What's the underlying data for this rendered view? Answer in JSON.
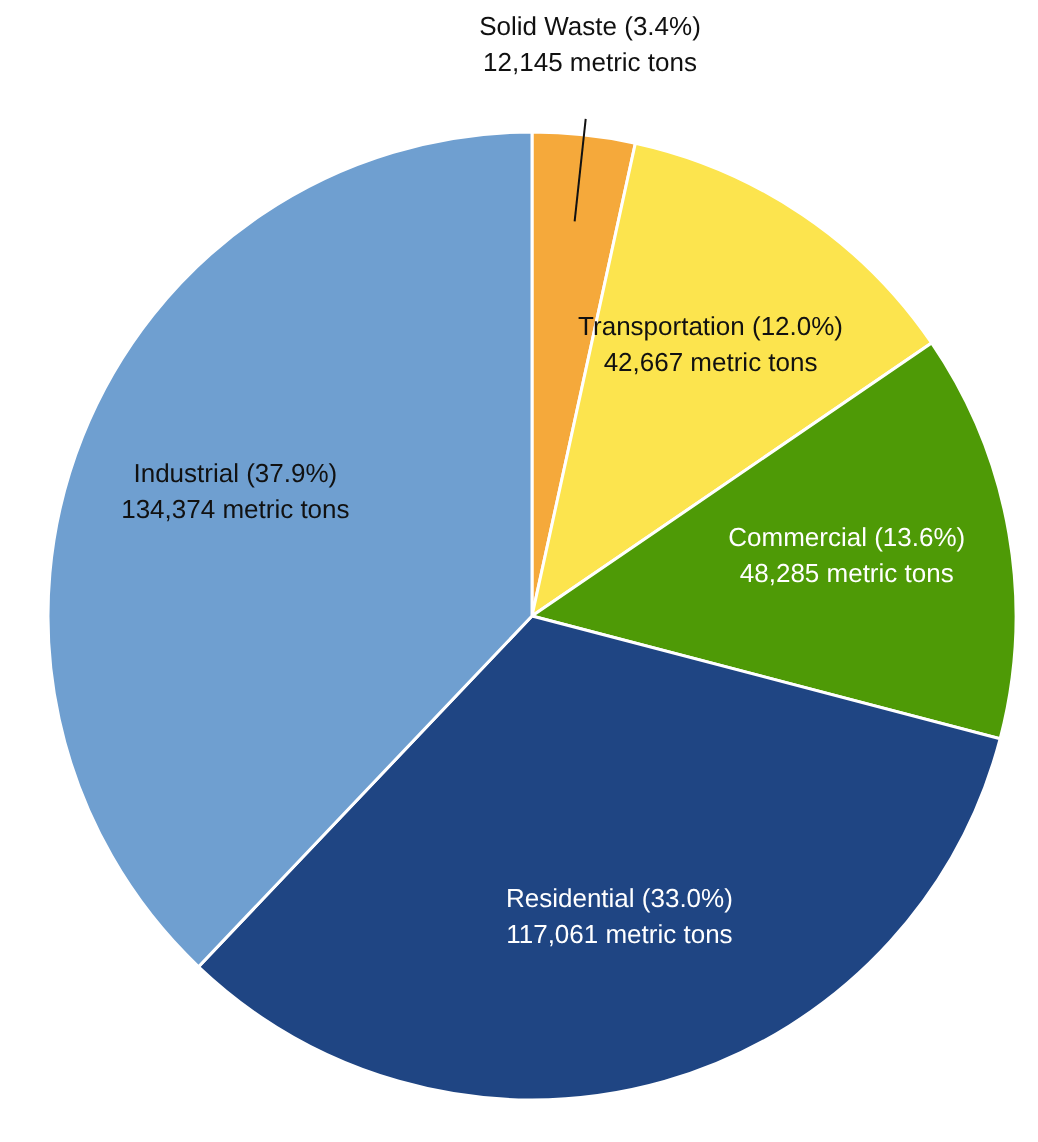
{
  "chart_data": {
    "type": "pie",
    "categories": [
      "Solid Waste (3.4%)",
      "Transportation (12.0%)",
      "Commercial (13.6%)",
      "Residential (33.0%)",
      "Industrial (37.9%)"
    ],
    "values": [
      12145,
      42667,
      48285,
      117061,
      134374
    ],
    "colors": [
      "#f5a93b",
      "#fce44e",
      "#4e9a06",
      "#1f4583",
      "#6f9fd0"
    ],
    "value_labels": [
      "12,145 metric tons",
      "42,667 metric tons",
      "48,285 metric tons",
      "117,061 metric tons",
      "134,374 metric tons"
    ]
  }
}
